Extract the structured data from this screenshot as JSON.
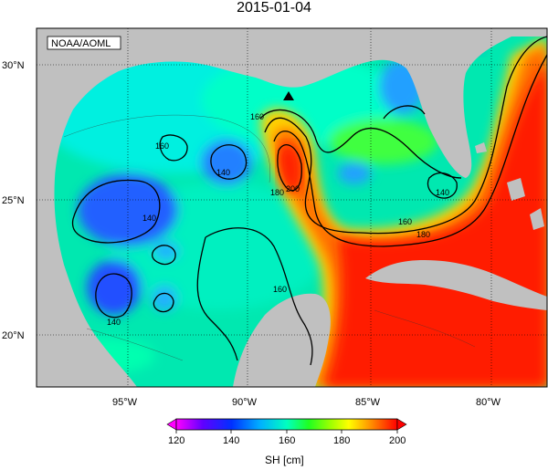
{
  "title": "2015-01-04",
  "credit": "NOAA/AOML",
  "lat_labels": [
    "30°N",
    "25°N",
    "20°N"
  ],
  "lon_labels": [
    "95°W",
    "90°W",
    "85°W",
    "80°W"
  ],
  "contour_labels": [
    "160",
    "140",
    "140",
    "140",
    "160",
    "180",
    "200",
    "160",
    "180",
    "140",
    "160"
  ],
  "colorbar": {
    "ticks": [
      "120",
      "140",
      "160",
      "180",
      "200"
    ],
    "label": "SH [cm]",
    "colors": [
      "#ff00ff",
      "#8000ff",
      "#0020ff",
      "#00a0ff",
      "#00ffff",
      "#00ff80",
      "#40ff00",
      "#c0ff00",
      "#ffff00",
      "#ffb000",
      "#ff5000",
      "#ff0000"
    ]
  },
  "colors": {
    "land": "#c0c0c0",
    "border": "#000000"
  }
}
